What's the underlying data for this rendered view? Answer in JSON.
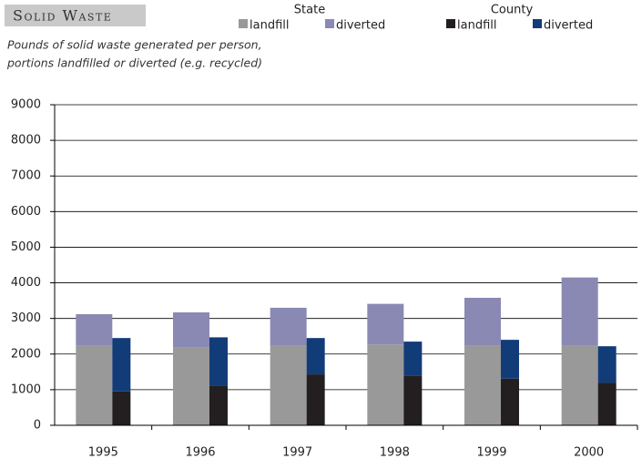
{
  "chart_data": {
    "type": "grouped-stacked-bar",
    "title": "Solid Waste",
    "subtitle": [
      "Pounds of solid waste generated per person,",
      "portions landfilled or diverted (e.g. recycled)"
    ],
    "categories": [
      "1995",
      "1996",
      "1997",
      "1998",
      "1999",
      "2000"
    ],
    "groups": [
      {
        "name": "State",
        "series": [
          {
            "name": "landfill",
            "color": "#999999",
            "values": [
              2230,
              2180,
              2230,
              2270,
              2240,
              2230
            ]
          },
          {
            "name": "diverted",
            "color": "#8a89b3",
            "values": [
              890,
              990,
              1070,
              1140,
              1340,
              1920
            ]
          }
        ]
      },
      {
        "name": "County",
        "series": [
          {
            "name": "landfill",
            "color": "#231f20",
            "values": [
              950,
              1110,
              1430,
              1390,
              1310,
              1190
            ]
          },
          {
            "name": "diverted",
            "color": "#123c78",
            "values": [
              1500,
              1360,
              1020,
              960,
              1090,
              1030
            ]
          }
        ]
      }
    ],
    "ylim": [
      0,
      9000
    ],
    "yticks": [
      0,
      1000,
      2000,
      3000,
      4000,
      5000,
      6000,
      7000,
      8000,
      9000
    ],
    "grid": true
  }
}
